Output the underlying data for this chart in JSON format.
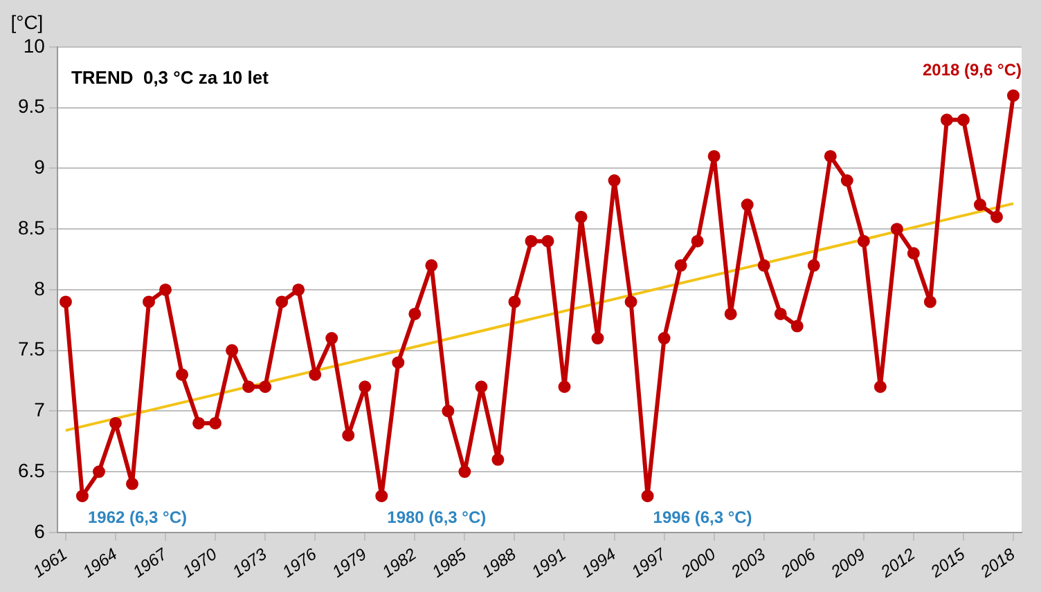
{
  "chart_data": {
    "type": "line",
    "ylabel": "[°C]",
    "x": [
      1961,
      1962,
      1963,
      1964,
      1965,
      1966,
      1967,
      1968,
      1969,
      1970,
      1971,
      1972,
      1973,
      1974,
      1975,
      1976,
      1977,
      1978,
      1979,
      1980,
      1981,
      1982,
      1983,
      1984,
      1985,
      1986,
      1987,
      1988,
      1989,
      1990,
      1991,
      1992,
      1993,
      1994,
      1995,
      1996,
      1997,
      1998,
      1999,
      2000,
      2001,
      2002,
      2003,
      2004,
      2005,
      2006,
      2007,
      2008,
      2009,
      2010,
      2011,
      2012,
      2013,
      2014,
      2015,
      2016,
      2017,
      2018
    ],
    "series": [
      {
        "color": "#c00000",
        "marker": "circle",
        "values": [
          7.9,
          6.3,
          6.5,
          6.9,
          6.4,
          7.9,
          8.0,
          7.3,
          6.9,
          6.9,
          7.5,
          7.2,
          7.2,
          7.9,
          8.0,
          7.3,
          7.6,
          6.8,
          7.2,
          6.3,
          7.4,
          7.8,
          8.2,
          7.0,
          6.5,
          7.2,
          6.6,
          7.9,
          8.4,
          8.4,
          7.2,
          8.6,
          7.6,
          8.9,
          7.9,
          6.3,
          7.6,
          8.2,
          8.4,
          9.1,
          7.8,
          8.7,
          8.2,
          7.8,
          7.7,
          8.2,
          9.1,
          8.9,
          8.4,
          7.2,
          8.5,
          8.3,
          7.9,
          9.4,
          9.4,
          8.7,
          8.6,
          9.6
        ]
      },
      {
        "color": "#f2c318",
        "marker": "none",
        "x": [
          1961,
          2018
        ],
        "values": [
          6.84,
          8.71
        ]
      }
    ],
    "xlim": [
      1960.5,
      2018.5
    ],
    "xticks": [
      1961,
      1964,
      1967,
      1970,
      1973,
      1976,
      1979,
      1982,
      1985,
      1988,
      1991,
      1994,
      1997,
      2000,
      2003,
      2006,
      2009,
      2012,
      2015,
      2018
    ],
    "ylim": [
      6,
      10
    ],
    "yticks": [
      6,
      6.5,
      7,
      7.5,
      8,
      8.5,
      9,
      9.5,
      10
    ],
    "grid": "y",
    "legend": false,
    "line_style": "solid",
    "annotations": [
      "TREND  0,3 °C za 10 let",
      {
        "text": "1962 (6,3 °C)",
        "x": 1962,
        "y": 6.3
      },
      {
        "text": "1980 (6,3 °C)",
        "x": 1980,
        "y": 6.3
      },
      {
        "text": "1996 (6,3 °C)",
        "x": 1996,
        "y": 6.3
      },
      {
        "text": "2018 (9,6 °C)",
        "x": 2018,
        "y": 9.6
      }
    ]
  }
}
